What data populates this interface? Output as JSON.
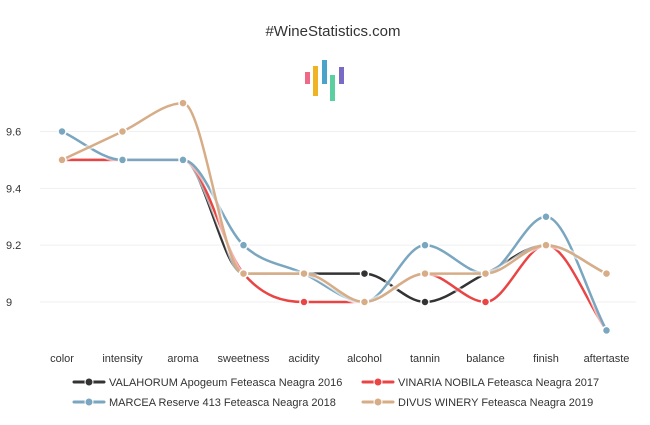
{
  "chart_data": {
    "type": "line",
    "title": "#WineStatistics.com",
    "categories": [
      "color",
      "intensity",
      "aroma",
      "sweetness",
      "acidity",
      "alcohol",
      "tannin",
      "balance",
      "finish",
      "aftertaste"
    ],
    "y_ticks": [
      "9",
      "9.2",
      "9.4",
      "9.6"
    ],
    "ylim": [
      8.87,
      9.72
    ],
    "grid": true,
    "legend_position": "bottom",
    "series": [
      {
        "name": "VALAHORUM Apogeum Feteasca Neagra 2016",
        "color": "#333333",
        "values": [
          9.5,
          9.5,
          9.5,
          9.1,
          9.1,
          9.1,
          9.0,
          9.1,
          9.2,
          9.1
        ]
      },
      {
        "name": "VINARIA NOBILA Feteasca Neagra 2017",
        "color": "#e94545",
        "values": [
          9.5,
          9.5,
          9.5,
          9.1,
          9.0,
          9.0,
          9.1,
          9.0,
          9.2,
          8.9
        ]
      },
      {
        "name": "MARCEA Reserve 413 Feteasca Neagra 2018",
        "color": "#7aa6c0",
        "values": [
          9.6,
          9.5,
          9.5,
          9.2,
          9.1,
          9.0,
          9.2,
          9.1,
          9.3,
          8.9
        ]
      },
      {
        "name": "DIVUS WINERY Feteasca Neagra 2019",
        "color": "#d7ad88",
        "values": [
          9.5,
          9.6,
          9.7,
          9.1,
          9.1,
          9.0,
          9.1,
          9.1,
          9.2,
          9.1
        ]
      }
    ],
    "logo_colors": [
      "#ee6a86",
      "#f0b323",
      "#4aa3c9",
      "#5ccfa0",
      "#7a6ac6"
    ]
  }
}
